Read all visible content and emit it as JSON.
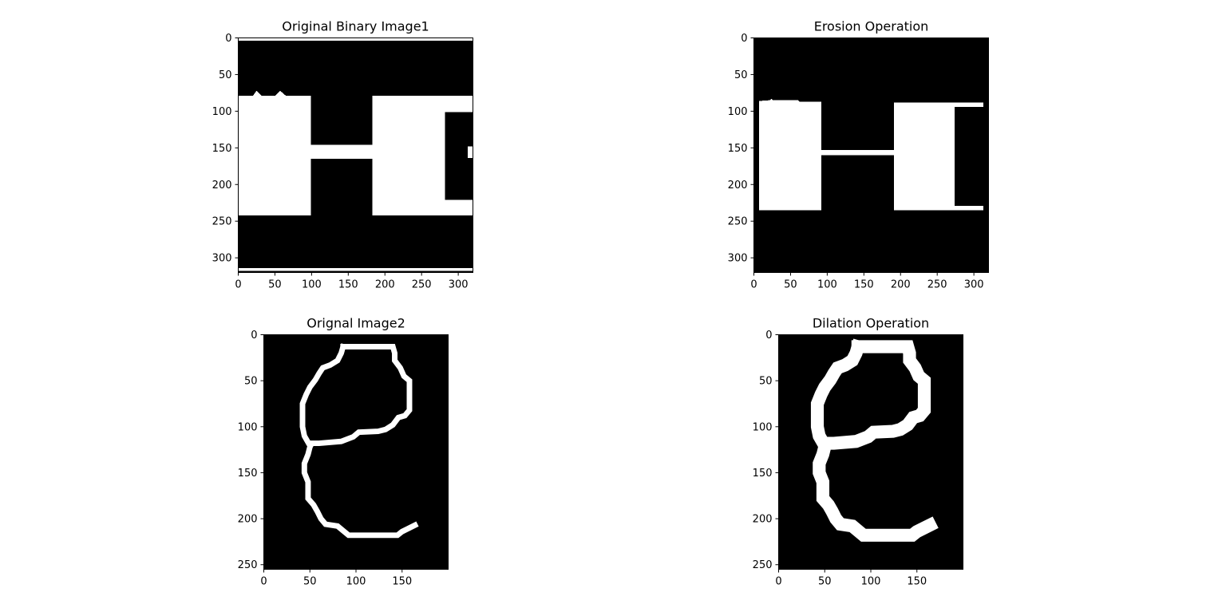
{
  "chart_data": [
    {
      "type": "image",
      "title": "Original Binary Image1",
      "xlabel": "",
      "ylabel": "",
      "xlim": [
        0,
        320
      ],
      "ylim": [
        320,
        0
      ],
      "xticks": [
        0,
        50,
        100,
        150,
        200,
        250,
        300
      ],
      "yticks": [
        0,
        50,
        100,
        150,
        200,
        250,
        300
      ],
      "colormap": "gray",
      "background": "#000000",
      "foreground": "#ffffff",
      "white_regions": [
        {
          "poly": [
            [
              0,
              0
            ],
            [
              320,
              0
            ],
            [
              320,
              4
            ],
            [
              0,
              4
            ]
          ]
        },
        {
          "poly": [
            [
              0,
              79
            ],
            [
              20,
              79
            ],
            [
              25,
              72
            ],
            [
              32,
              79
            ],
            [
              50,
              79
            ],
            [
              57,
              72
            ],
            [
              65,
              79
            ],
            [
              99,
              79
            ],
            [
              99,
              146
            ],
            [
              183,
              146
            ],
            [
              183,
              79
            ],
            [
              320,
              79
            ],
            [
              320,
              101
            ],
            [
              282,
              101
            ],
            [
              282,
              221
            ],
            [
              320,
              221
            ],
            [
              320,
              242
            ],
            [
              183,
              242
            ],
            [
              183,
              165
            ],
            [
              99,
              165
            ],
            [
              99,
              242
            ],
            [
              0,
              242
            ]
          ]
        },
        {
          "poly": [
            [
              313,
              148
            ],
            [
              320,
              148
            ],
            [
              320,
              164
            ],
            [
              313,
              164
            ]
          ]
        },
        {
          "poly": [
            [
              0,
              314
            ],
            [
              320,
              314
            ],
            [
              320,
              318
            ],
            [
              0,
              318
            ]
          ]
        }
      ]
    },
    {
      "type": "image",
      "title": "Erosion Operation",
      "xlabel": "",
      "ylabel": "",
      "xlim": [
        0,
        320
      ],
      "ylim": [
        320,
        0
      ],
      "xticks": [
        0,
        50,
        100,
        150,
        200,
        250,
        300
      ],
      "yticks": [
        0,
        50,
        100,
        150,
        200,
        250,
        300
      ],
      "colormap": "gray",
      "background": "#000000",
      "foreground": "#ffffff",
      "white_regions": [
        {
          "poly": [
            [
              7,
              86
            ],
            [
              22,
              85
            ],
            [
              24,
              83
            ],
            [
              26,
              85
            ],
            [
              60,
              85
            ],
            [
              62,
              87
            ],
            [
              92,
              87
            ],
            [
              92,
              153
            ],
            [
              191,
              153
            ],
            [
              191,
              88
            ],
            [
              313,
              88
            ],
            [
              313,
              94
            ],
            [
              274,
              94
            ],
            [
              274,
              229
            ],
            [
              313,
              229
            ],
            [
              313,
              235
            ],
            [
              191,
              235
            ],
            [
              191,
              160
            ],
            [
              92,
              160
            ],
            [
              92,
              235
            ],
            [
              7,
              235
            ]
          ]
        }
      ]
    },
    {
      "type": "image",
      "title": "Orignal Image2",
      "xlabel": "",
      "ylabel": "",
      "xlim": [
        0,
        200
      ],
      "ylim": [
        255,
        0
      ],
      "xticks": [
        0,
        50,
        100,
        150
      ],
      "yticks": [
        0,
        50,
        100,
        150,
        200,
        250
      ],
      "colormap": "gray",
      "background": "#000000",
      "foreground": "#ffffff",
      "stroke_width": 6,
      "paths": [
        [
          [
            86,
            13
          ],
          [
            140,
            13
          ],
          [
            142,
            20
          ],
          [
            142,
            28
          ],
          [
            148,
            36
          ],
          [
            152,
            45
          ],
          [
            158,
            50
          ],
          [
            158,
            82
          ],
          [
            153,
            88
          ],
          [
            146,
            90
          ],
          [
            140,
            98
          ],
          [
            132,
            103
          ],
          [
            124,
            105
          ],
          [
            103,
            106
          ],
          [
            97,
            111
          ],
          [
            84,
            116
          ],
          [
            60,
            118
          ],
          [
            52,
            118
          ],
          [
            50,
            122
          ],
          [
            48,
            130
          ],
          [
            44,
            140
          ],
          [
            44,
            150
          ],
          [
            48,
            160
          ],
          [
            48,
            178
          ],
          [
            54,
            185
          ],
          [
            58,
            192
          ],
          [
            62,
            200
          ],
          [
            67,
            206
          ],
          [
            80,
            208
          ],
          [
            86,
            213
          ],
          [
            92,
            218
          ],
          [
            145,
            218
          ],
          [
            150,
            214
          ],
          [
            158,
            210
          ],
          [
            164,
            207
          ]
        ],
        [
          [
            86,
            13
          ],
          [
            84,
            20
          ],
          [
            80,
            28
          ],
          [
            72,
            33
          ],
          [
            64,
            36
          ],
          [
            60,
            42
          ],
          [
            56,
            49
          ],
          [
            50,
            57
          ],
          [
            46,
            65
          ],
          [
            42,
            75
          ],
          [
            42,
            100
          ],
          [
            44,
            110
          ],
          [
            48,
            117
          ]
        ]
      ]
    },
    {
      "type": "image",
      "title": "Dilation Operation",
      "xlabel": "",
      "ylabel": "",
      "xlim": [
        0,
        200
      ],
      "ylim": [
        255,
        0
      ],
      "xticks": [
        0,
        50,
        100,
        150
      ],
      "yticks": [
        0,
        50,
        100,
        150,
        200,
        250
      ],
      "colormap": "gray",
      "background": "#000000",
      "foreground": "#ffffff",
      "stroke_width": 14,
      "paths": [
        [
          [
            86,
            13
          ],
          [
            140,
            13
          ],
          [
            142,
            20
          ],
          [
            142,
            28
          ],
          [
            148,
            36
          ],
          [
            152,
            45
          ],
          [
            158,
            50
          ],
          [
            158,
            82
          ],
          [
            153,
            88
          ],
          [
            146,
            90
          ],
          [
            140,
            98
          ],
          [
            132,
            103
          ],
          [
            124,
            105
          ],
          [
            103,
            106
          ],
          [
            97,
            111
          ],
          [
            84,
            116
          ],
          [
            60,
            118
          ],
          [
            52,
            118
          ],
          [
            50,
            122
          ],
          [
            48,
            130
          ],
          [
            44,
            140
          ],
          [
            44,
            150
          ],
          [
            48,
            160
          ],
          [
            48,
            178
          ],
          [
            54,
            185
          ],
          [
            58,
            192
          ],
          [
            62,
            200
          ],
          [
            67,
            206
          ],
          [
            80,
            208
          ],
          [
            86,
            213
          ],
          [
            92,
            218
          ],
          [
            145,
            218
          ],
          [
            150,
            214
          ],
          [
            158,
            210
          ],
          [
            164,
            207
          ]
        ],
        [
          [
            86,
            13
          ],
          [
            84,
            20
          ],
          [
            80,
            28
          ],
          [
            72,
            33
          ],
          [
            64,
            36
          ],
          [
            60,
            42
          ],
          [
            56,
            49
          ],
          [
            50,
            57
          ],
          [
            46,
            65
          ],
          [
            42,
            75
          ],
          [
            42,
            100
          ],
          [
            44,
            110
          ],
          [
            48,
            117
          ]
        ]
      ]
    }
  ]
}
